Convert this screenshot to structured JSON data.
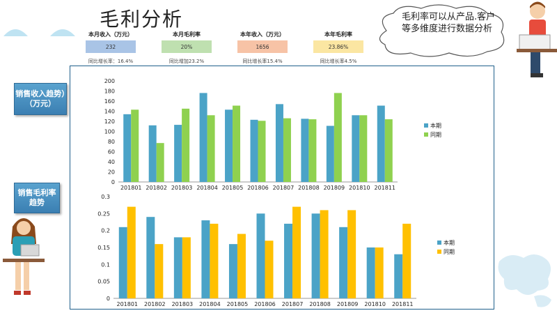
{
  "title": "毛利分析",
  "kpis": [
    {
      "label": "本月收入（万元）",
      "value": "232",
      "sub": "同比增长率：16.4%",
      "color": "#a9c4e6"
    },
    {
      "label": "本月毛利率",
      "value": "20%",
      "sub": "同比增加23.2%",
      "color": "#bfe0b0"
    },
    {
      "label": "本年收入（万元）",
      "value": "1656",
      "sub": "同比增长率15.4%",
      "color": "#f7c3a6"
    },
    {
      "label": "本年毛利率",
      "value": "23.86%",
      "sub": "同比增长率4.5%",
      "color": "#fbe6a2"
    }
  ],
  "cloud_text": "毛利率可以从产品.客户等多维度进行数据分析",
  "sidebar": {
    "revenue_button": "销售收入趋势）（万元）",
    "margin_button": "销售毛利率趋势"
  },
  "colors": {
    "frame": "#1f5f8b",
    "series_current": "#4ba3c7",
    "series_prev_revenue": "#8fd14f",
    "series_prev_margin": "#ffc000"
  },
  "chart_data": [
    {
      "type": "bar",
      "categories": [
        "201801",
        "201802",
        "201803",
        "201804",
        "201805",
        "201806",
        "201807",
        "201808",
        "201809",
        "201810",
        "201811"
      ],
      "series": [
        {
          "name": "本期",
          "values": [
            134,
            112,
            113,
            176,
            143,
            123,
            154,
            125,
            111,
            132,
            151
          ]
        },
        {
          "name": "同期",
          "values": [
            143,
            77,
            145,
            132,
            151,
            121,
            126,
            124,
            176,
            132,
            124
          ]
        }
      ],
      "ylim": [
        0,
        200
      ],
      "yticks": [
        "0",
        "20",
        "40",
        "60",
        "80",
        "100",
        "120",
        "140",
        "160",
        "180",
        "200"
      ],
      "legend": "right"
    },
    {
      "type": "bar",
      "categories": [
        "201801",
        "201802",
        "201803",
        "201804",
        "201805",
        "201806",
        "201807",
        "201808",
        "201809",
        "201810",
        "201811"
      ],
      "series": [
        {
          "name": "本期",
          "values": [
            0.21,
            0.24,
            0.18,
            0.23,
            0.16,
            0.25,
            0.22,
            0.25,
            0.21,
            0.15,
            0.13
          ]
        },
        {
          "name": "同期",
          "values": [
            0.27,
            0.16,
            0.18,
            0.22,
            0.19,
            0.17,
            0.27,
            0.26,
            0.26,
            0.15,
            0.22
          ]
        }
      ],
      "ylim": [
        0,
        0.3
      ],
      "yticks": [
        "0",
        "0.05",
        "0.1",
        "0.15",
        "0.2",
        "0.25",
        "0.3"
      ],
      "legend": "right"
    }
  ]
}
